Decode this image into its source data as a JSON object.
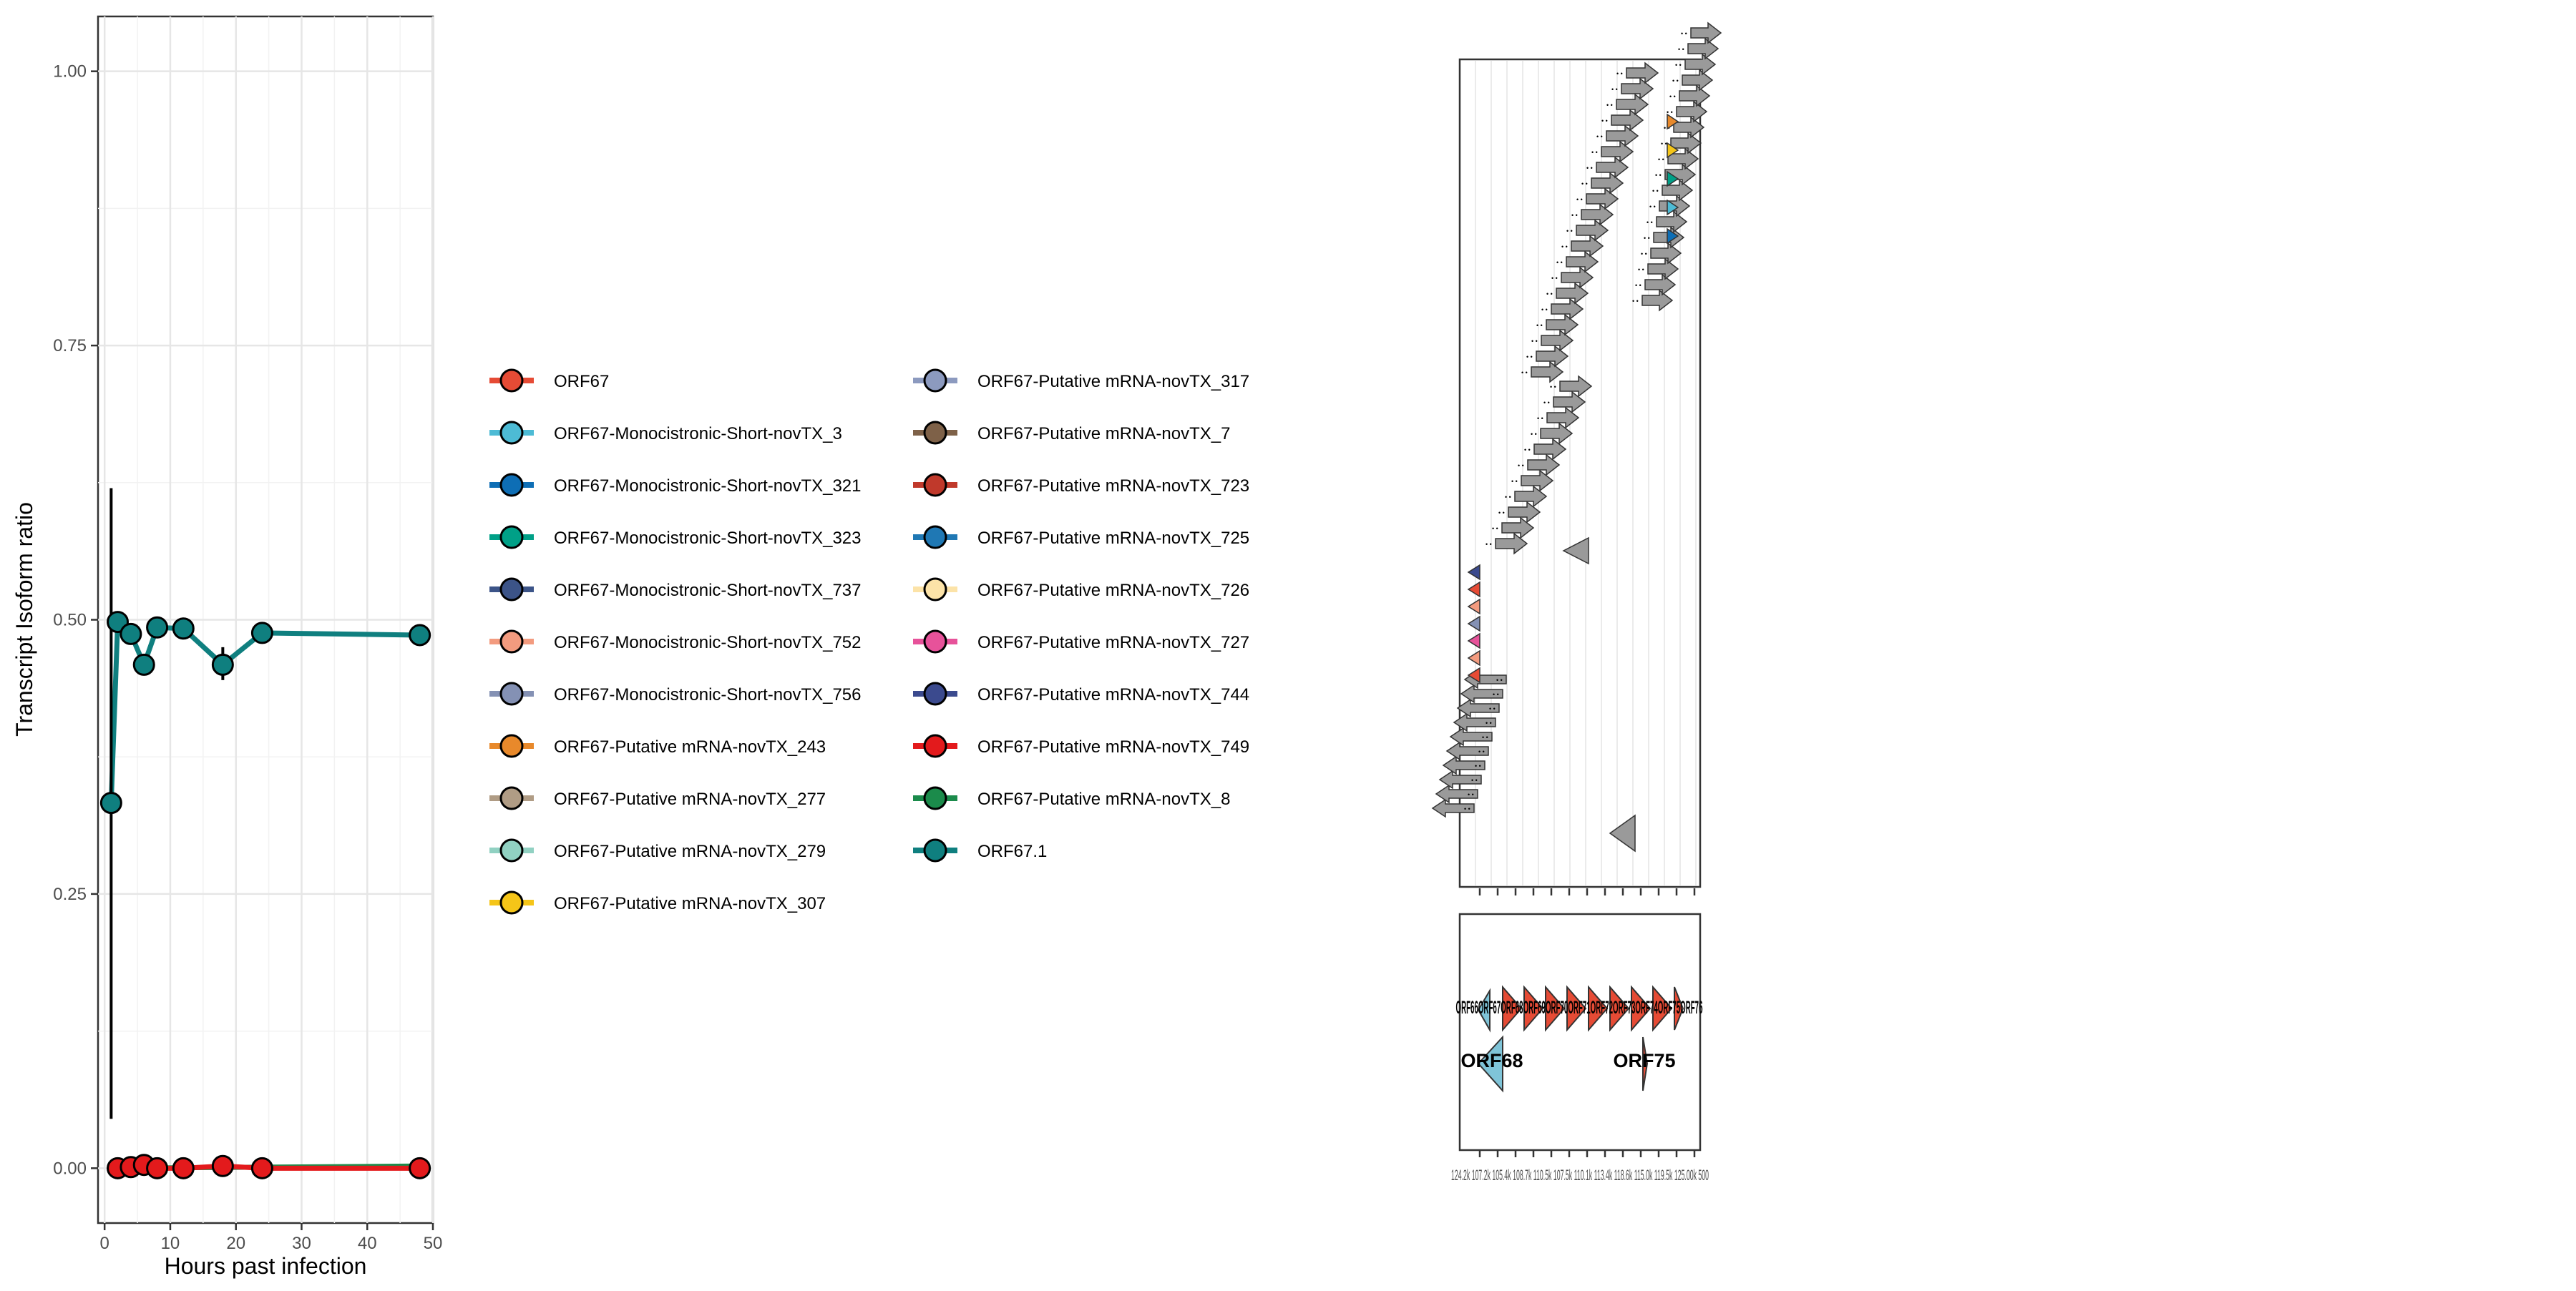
{
  "chart_data": [
    {
      "type": "line",
      "xlabel": "Hours past infection",
      "ylabel": "Transcript Isoform ratio",
      "xlim": [
        -1,
        50
      ],
      "ylim": [
        -0.05,
        1.05
      ],
      "x_ticks": [
        "0",
        "10",
        "20",
        "30",
        "40",
        "50"
      ],
      "y_ticks": [
        "0.00",
        "0.25",
        "0.50",
        "0.75",
        "1.00"
      ],
      "grid": true,
      "legend_position": "right",
      "series": [
        {
          "name": "ORF67.1",
          "color": "#0F7F7F",
          "points": [
            [
              1,
              0.333
            ],
            [
              2,
              0.498
            ],
            [
              4,
              0.487
            ],
            [
              6,
              0.459
            ],
            [
              8,
              0.493
            ],
            [
              12,
              0.492
            ],
            [
              18,
              0.459
            ],
            [
              24,
              0.488
            ],
            [
              48,
              0.486
            ]
          ],
          "error": [
            [
              1,
              0.045,
              0.62
            ],
            [
              18,
              0.445,
              0.475
            ]
          ]
        },
        {
          "name": "ORF67-Putative mRNA-novTX_749",
          "color": "#E31A1C",
          "points": [
            [
              2,
              0.0
            ],
            [
              4,
              0.001
            ],
            [
              6,
              0.003
            ],
            [
              8,
              0.0
            ],
            [
              12,
              0.0
            ],
            [
              18,
              0.002
            ],
            [
              24,
              0.0
            ],
            [
              48,
              0.0
            ]
          ]
        },
        {
          "name": "ORF67-Putative mRNA-novTX_8",
          "color": "#1B8B4B",
          "points": [
            [
              2,
              0.0
            ],
            [
              48,
              0.002
            ]
          ]
        }
      ]
    },
    {
      "type": "legend",
      "entries": [
        {
          "name": "ORF67",
          "color": "#E64B35"
        },
        {
          "name": "ORF67-Monocistronic-Short-novTX_3",
          "color": "#4DBBD5"
        },
        {
          "name": "ORF67-Monocistronic-Short-novTX_321",
          "color": "#0E6EB5"
        },
        {
          "name": "ORF67-Monocistronic-Short-novTX_323",
          "color": "#00A087"
        },
        {
          "name": "ORF67-Monocistronic-Short-novTX_737",
          "color": "#3C5488"
        },
        {
          "name": "ORF67-Monocistronic-Short-novTX_752",
          "color": "#F39B7F"
        },
        {
          "name": "ORF67-Monocistronic-Short-novTX_756",
          "color": "#8491B4"
        },
        {
          "name": "ORF67-Putative mRNA-novTX_243",
          "color": "#E8892B"
        },
        {
          "name": "ORF67-Putative mRNA-novTX_277",
          "color": "#B09C85"
        },
        {
          "name": "ORF67-Putative mRNA-novTX_279",
          "color": "#91D1C2"
        },
        {
          "name": "ORF67-Putative mRNA-novTX_307",
          "color": "#F5C518"
        },
        {
          "name": "ORF67-Putative mRNA-novTX_317",
          "color": "#8C9ABF"
        },
        {
          "name": "ORF67-Putative mRNA-novTX_7",
          "color": "#7E6148"
        },
        {
          "name": "ORF67-Putative mRNA-novTX_723",
          "color": "#C0392B"
        },
        {
          "name": "ORF67-Putative mRNA-novTX_725",
          "color": "#1F78B4"
        },
        {
          "name": "ORF67-Putative mRNA-novTX_726",
          "color": "#FCE3A8"
        },
        {
          "name": "ORF67-Putative mRNA-novTX_727",
          "color": "#E7529A"
        },
        {
          "name": "ORF67-Putative mRNA-novTX_744",
          "color": "#3B4A8E"
        },
        {
          "name": "ORF67-Putative mRNA-novTX_749",
          "color": "#E31A1C"
        },
        {
          "name": "ORF67-Putative mRNA-novTX_8",
          "color": "#1B8B4B"
        },
        {
          "name": "ORF67.1",
          "color": "#0F7F7F"
        }
      ]
    },
    {
      "type": "diagram",
      "x_tick_labels": "124.2k 107.2k 105.4k 108.7k 110.5k 107.5k 110.1k 113.4k 118.6k 115.0k 119.5k 125.00k 500",
      "genes": [
        {
          "label": "ORF68",
          "color": "#7FC4D8"
        },
        {
          "label": "ORF75",
          "color": "#E64B35"
        }
      ],
      "overlapping_gene_label": "ORF66ORF67ORF68ORF69ORF70ORF71ORF72ORF73ORF74ORF75ORF76"
    }
  ]
}
